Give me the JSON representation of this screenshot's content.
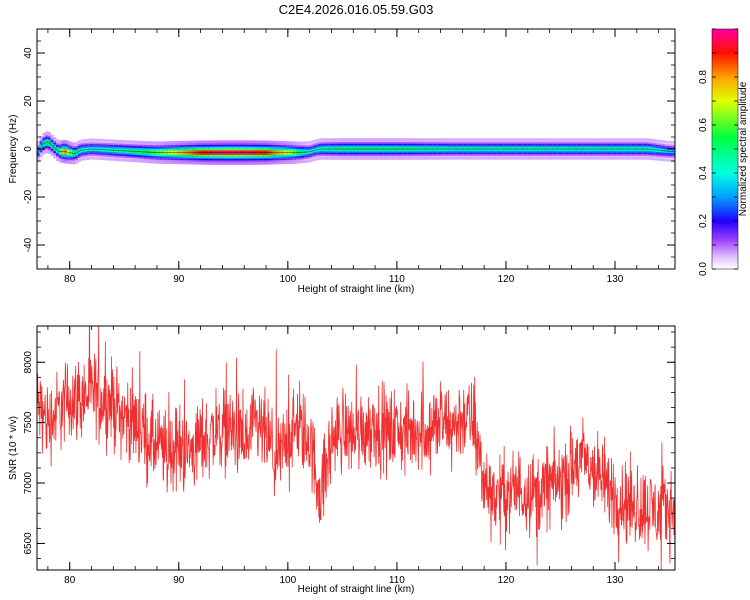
{
  "title": "C2E4.2026.016.05.59.G03",
  "chart_data": [
    {
      "type": "heatmap",
      "xlabel": "Height of straight line (km)",
      "ylabel": "Frequency (Hz)",
      "xlim": [
        77.0,
        135.5
      ],
      "ylim": [
        -50,
        50
      ],
      "xticks": [
        "80",
        "90",
        "100",
        "110",
        "120",
        "130"
      ],
      "yticks": [
        "40",
        "20",
        "0",
        "-20",
        "-40"
      ],
      "colorbar": {
        "label": "Normalized spectral amplitude",
        "range": [
          0.0,
          1.0
        ],
        "ticks": [
          "0.0",
          "0.2",
          "0.4",
          "0.6",
          "0.8"
        ]
      },
      "ridge": {
        "x": [
          77,
          77.5,
          78,
          78.5,
          79,
          79.5,
          80,
          80.5,
          81,
          82,
          84,
          86,
          88,
          90,
          92,
          94,
          96,
          98,
          100,
          101,
          102,
          102.5,
          103,
          105,
          110,
          115,
          120,
          125,
          130,
          133,
          134,
          135
        ],
        "freq": [
          -2,
          2,
          3,
          1,
          -1,
          -1,
          -1.5,
          -2,
          -0.5,
          0,
          -0.5,
          -1,
          -1.5,
          -1.5,
          -1.5,
          -1.5,
          -1.5,
          -1.5,
          -1.5,
          -1.5,
          -1.2,
          -0.5,
          0,
          0,
          0,
          0,
          0,
          0,
          0,
          0,
          -0.5,
          -1
        ],
        "amplitude": [
          0.3,
          0.45,
          0.55,
          0.45,
          0.5,
          0.85,
          0.65,
          0.5,
          0.45,
          0.4,
          0.45,
          0.5,
          0.6,
          0.75,
          0.9,
          0.95,
          0.95,
          0.9,
          0.7,
          0.55,
          0.4,
          0.4,
          0.45,
          0.5,
          0.5,
          0.45,
          0.45,
          0.45,
          0.45,
          0.45,
          0.4,
          0.35
        ]
      }
    },
    {
      "type": "line",
      "xlabel": "Height of straight line (km)",
      "ylabel": "SNR (10 * v/v)",
      "xlim": [
        77.0,
        135.5
      ],
      "ylim": [
        6280,
        8300
      ],
      "xticks": [
        "80",
        "90",
        "100",
        "110",
        "120",
        "130"
      ],
      "yticks": [
        "8000",
        "7500",
        "7000",
        "6500"
      ],
      "series": [
        {
          "color": "#f03030",
          "x": [
            77,
            78,
            79,
            80,
            81,
            82,
            83,
            84,
            85,
            86,
            87,
            88,
            89,
            90,
            91,
            92,
            93,
            94,
            95,
            96,
            97,
            98,
            99,
            100,
            101,
            102,
            103,
            104,
            105,
            106,
            107,
            108,
            109,
            110,
            111,
            112,
            113,
            114,
            115,
            116,
            117,
            118,
            119,
            120,
            121,
            122,
            123,
            124,
            125,
            126,
            127,
            128,
            129,
            130,
            131,
            132,
            133,
            134,
            135
          ],
          "y": [
            7650,
            7500,
            7600,
            7700,
            7700,
            7750,
            7700,
            7650,
            7550,
            7500,
            7400,
            7300,
            7250,
            7300,
            7250,
            7350,
            7400,
            7450,
            7450,
            7300,
            7450,
            7400,
            7150,
            7400,
            7450,
            7350,
            6900,
            7350,
            7450,
            7400,
            7450,
            7500,
            7400,
            7450,
            7400,
            7450,
            7450,
            7500,
            7450,
            7550,
            7500,
            7000,
            6900,
            6900,
            6950,
            6950,
            6900,
            7000,
            7000,
            7100,
            7200,
            7100,
            7000,
            6900,
            6850,
            6800,
            6800,
            6750,
            6800
          ],
          "noise_amplitude": 170
        }
      ]
    }
  ],
  "colors": {
    "line": "#f03030",
    "axis": "#000000",
    "background": "#ffffff"
  }
}
